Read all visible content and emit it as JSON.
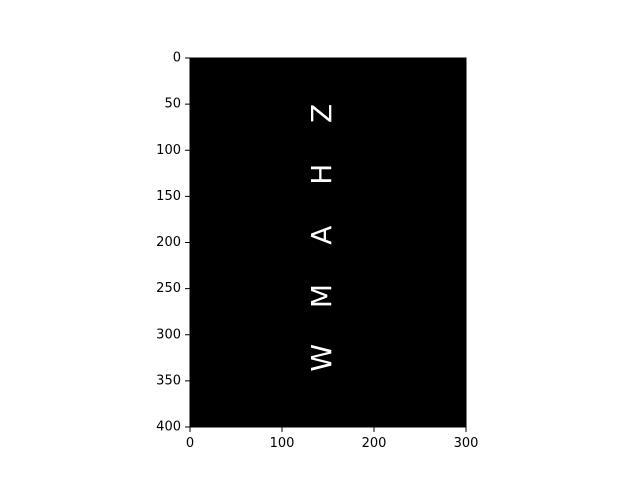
{
  "image": {
    "background_color": "#000000",
    "letter_color": "#ffffff",
    "x_range": [
      0,
      300
    ],
    "y_range": [
      0,
      400
    ],
    "x_ticks": [
      {
        "value": 0,
        "label": "0"
      },
      {
        "value": 100,
        "label": "100"
      },
      {
        "value": 200,
        "label": "200"
      },
      {
        "value": 300,
        "label": "300"
      }
    ],
    "y_ticks": [
      {
        "value": 0,
        "label": "0"
      },
      {
        "value": 50,
        "label": "50"
      },
      {
        "value": 100,
        "label": "100"
      },
      {
        "value": 150,
        "label": "150"
      },
      {
        "value": 200,
        "label": "200"
      },
      {
        "value": 250,
        "label": "250"
      },
      {
        "value": 300,
        "label": "300"
      },
      {
        "value": 350,
        "label": "350"
      },
      {
        "value": 400,
        "label": "400"
      }
    ],
    "letters": [
      {
        "char": "Z",
        "x": 143,
        "y": 60,
        "rotation": -90
      },
      {
        "char": "H",
        "x": 143,
        "y": 126,
        "rotation": -90
      },
      {
        "char": "A",
        "x": 143,
        "y": 192,
        "rotation": -90
      },
      {
        "char": "M",
        "x": 143,
        "y": 258,
        "rotation": -90
      },
      {
        "char": "W",
        "x": 143,
        "y": 325,
        "rotation": -90
      }
    ]
  }
}
